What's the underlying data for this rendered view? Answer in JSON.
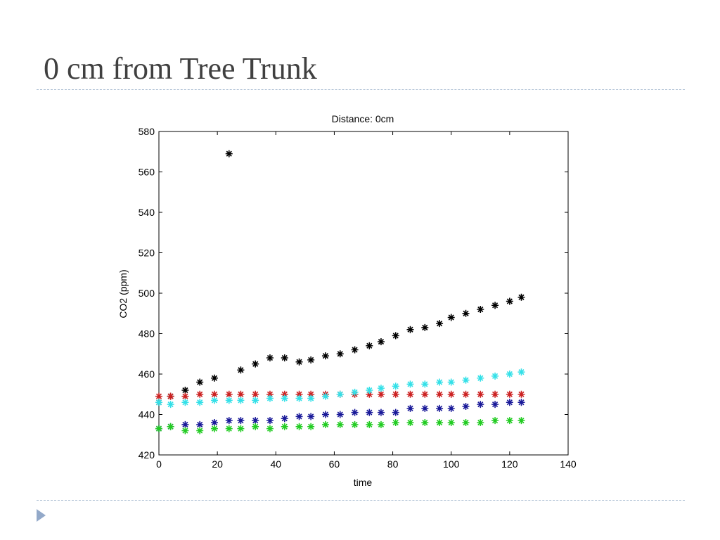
{
  "slide": {
    "title": "0 cm from Tree Trunk"
  },
  "chart_data": {
    "type": "scatter",
    "title": "Distance: 0cm",
    "xlabel": "time",
    "ylabel": "CO2 (ppm)",
    "xlim": [
      0,
      140
    ],
    "ylim": [
      420,
      580
    ],
    "xticks": [
      0,
      20,
      40,
      60,
      80,
      100,
      120,
      140
    ],
    "yticks": [
      420,
      440,
      460,
      480,
      500,
      520,
      540,
      560,
      580
    ],
    "marker": "*",
    "grid": false,
    "series": [
      {
        "color": "#000000",
        "x": [
          0,
          4,
          9,
          14,
          19,
          24,
          28,
          33,
          38,
          43,
          48,
          52,
          57,
          62,
          67,
          72,
          76,
          81,
          86,
          91,
          96,
          100,
          105,
          110,
          115,
          120,
          124
        ],
        "y": [
          446,
          449,
          452,
          456,
          458,
          569,
          462,
          465,
          468,
          468,
          466,
          467,
          469,
          470,
          472,
          474,
          476,
          479,
          482,
          483,
          485,
          488,
          490,
          492,
          494,
          496,
          498
        ]
      },
      {
        "color": "#cc2222",
        "x": [
          0,
          4,
          9,
          14,
          19,
          24,
          28,
          33,
          38,
          43,
          48,
          52,
          57,
          62,
          67,
          72,
          76,
          81,
          86,
          91,
          96,
          100,
          105,
          110,
          115,
          120,
          124
        ],
        "y": [
          449,
          449,
          449,
          450,
          450,
          450,
          450,
          450,
          450,
          450,
          450,
          450,
          450,
          450,
          450,
          450,
          450,
          450,
          450,
          450,
          450,
          450,
          450,
          450,
          450,
          450,
          450
        ]
      },
      {
        "color": "#33e0e8",
        "x": [
          0,
          4,
          9,
          14,
          19,
          24,
          28,
          33,
          38,
          43,
          48,
          52,
          57,
          62,
          67,
          72,
          76,
          81,
          86,
          91,
          96,
          100,
          105,
          110,
          115,
          120,
          124
        ],
        "y": [
          446,
          445,
          446,
          446,
          447,
          447,
          447,
          447,
          448,
          448,
          448,
          448,
          449,
          450,
          451,
          452,
          453,
          454,
          455,
          455,
          456,
          456,
          457,
          458,
          459,
          460,
          461
        ]
      },
      {
        "color": "#1a1a99",
        "x": [
          0,
          4,
          9,
          14,
          19,
          24,
          28,
          33,
          38,
          43,
          48,
          52,
          57,
          62,
          67,
          72,
          76,
          81,
          86,
          91,
          96,
          100,
          105,
          110,
          115,
          120,
          124
        ],
        "y": [
          433,
          434,
          435,
          435,
          436,
          437,
          437,
          437,
          437,
          438,
          439,
          439,
          440,
          440,
          441,
          441,
          441,
          441,
          443,
          443,
          443,
          443,
          444,
          445,
          445,
          446,
          446
        ]
      },
      {
        "color": "#22cc22",
        "x": [
          0,
          4,
          9,
          14,
          19,
          24,
          28,
          33,
          38,
          43,
          48,
          52,
          57,
          62,
          67,
          72,
          76,
          81,
          86,
          91,
          96,
          100,
          105,
          110,
          115,
          120,
          124
        ],
        "y": [
          433,
          434,
          432,
          432,
          433,
          433,
          433,
          434,
          433,
          434,
          434,
          434,
          435,
          435,
          435,
          435,
          435,
          436,
          436,
          436,
          436,
          436,
          436,
          436,
          437,
          437,
          437
        ]
      }
    ]
  }
}
